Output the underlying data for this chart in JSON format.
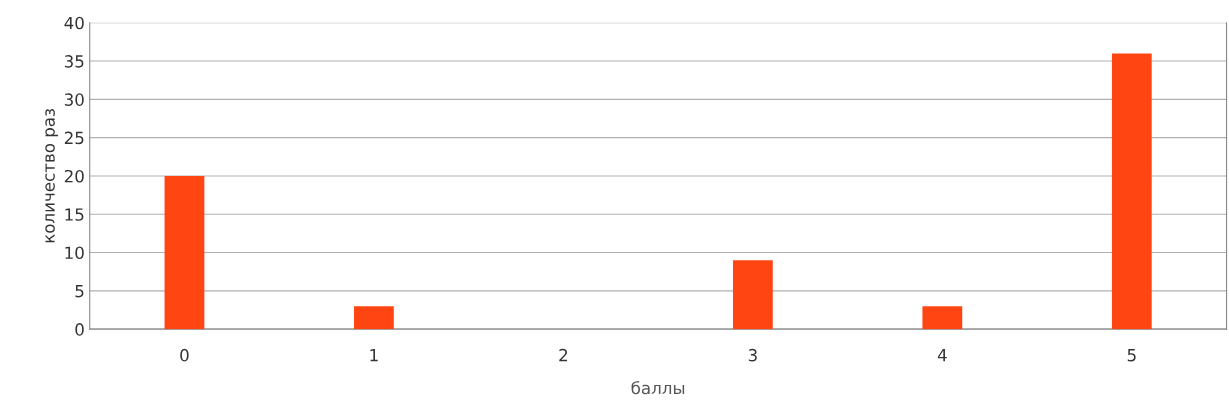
{
  "chart_data": {
    "type": "bar",
    "xlabel": "баллы",
    "ylabel": "количество раз",
    "categories": [
      "0",
      "1",
      "2",
      "3",
      "4",
      "5"
    ],
    "values": [
      20,
      3,
      0,
      9,
      3,
      36
    ],
    "color": "#ff4512",
    "ylim": [
      0,
      40
    ],
    "yticks": [
      0,
      5,
      10,
      15,
      20,
      25,
      30,
      35,
      40
    ],
    "grid": "y"
  }
}
